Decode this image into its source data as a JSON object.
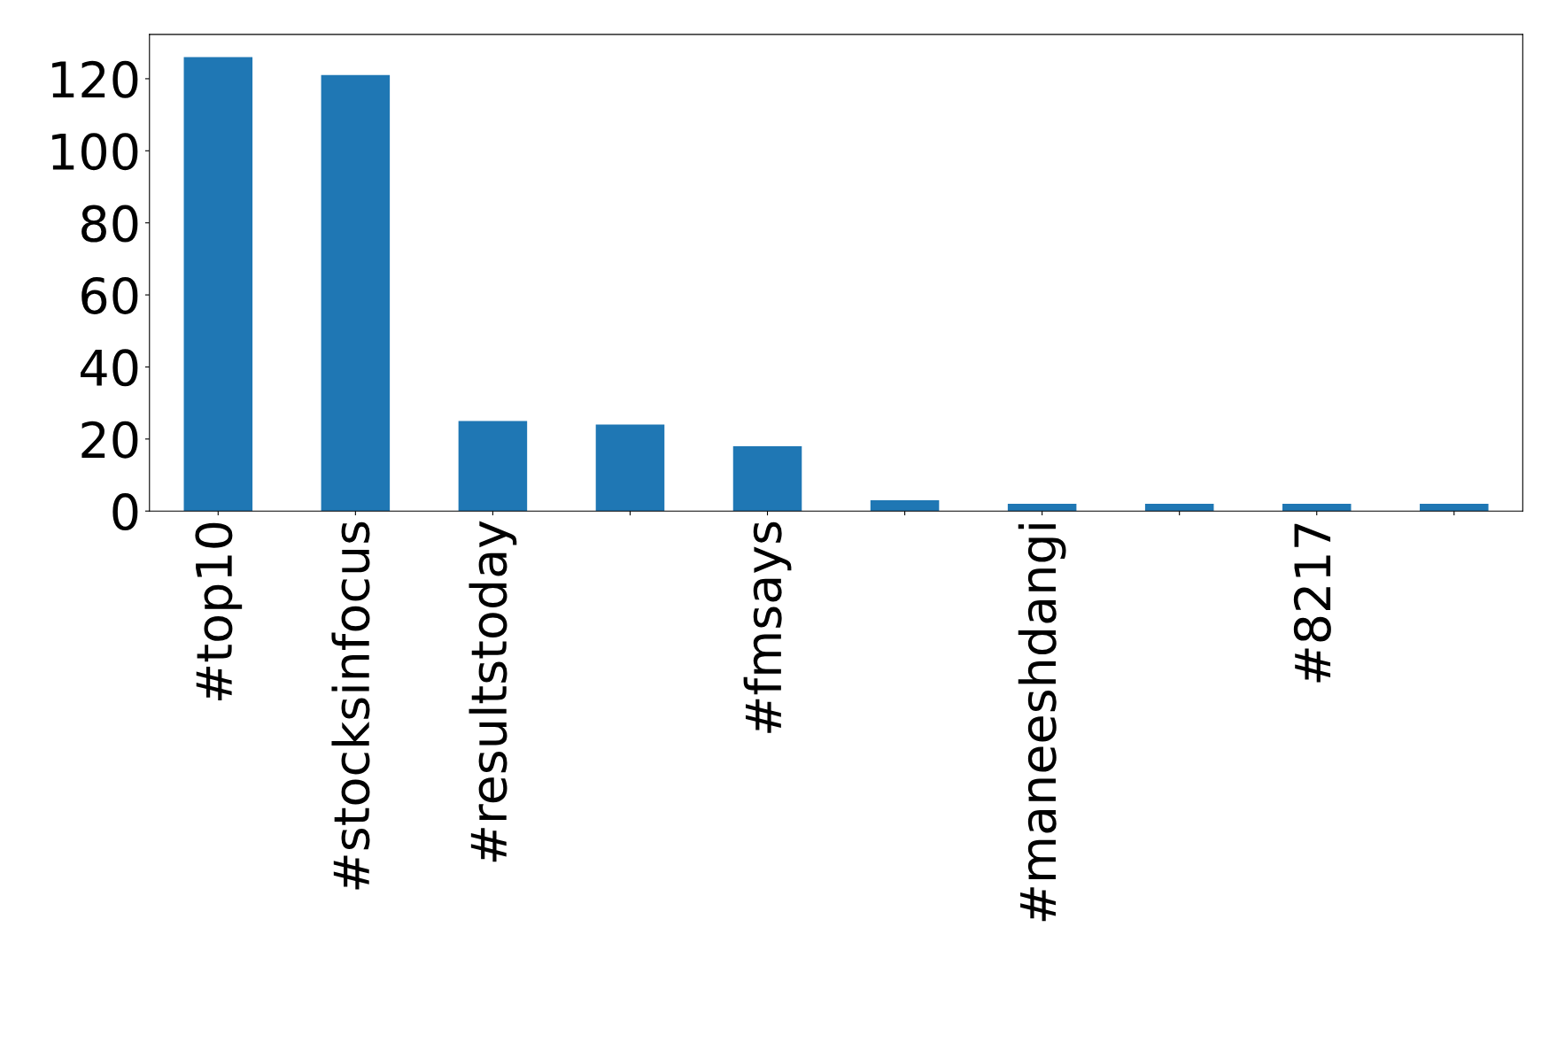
{
  "chart_data": {
    "type": "bar",
    "categories": [
      "#top10",
      "#stocksinfocus",
      "#resultstoday",
      null,
      "#fmsays",
      null,
      "#maneeshdangi",
      null,
      "#8217",
      null
    ],
    "values": [
      126,
      121,
      25,
      24,
      18,
      3,
      2,
      2,
      2,
      2
    ],
    "color": "#1f77b4",
    "ylim": [
      0,
      132.3
    ],
    "yticks": [
      0,
      20,
      40,
      60,
      80,
      100,
      120
    ],
    "grid": false,
    "legend": false
  }
}
